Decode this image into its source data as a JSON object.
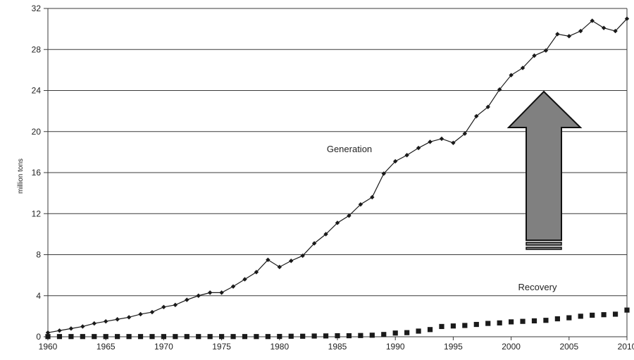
{
  "chart_data": {
    "type": "line",
    "title": "",
    "ylabel": "million tons",
    "xlabel": "",
    "xlim": [
      1960,
      2010
    ],
    "ylim": [
      0,
      32
    ],
    "x_ticks": [
      1960,
      1965,
      1970,
      1975,
      1980,
      1985,
      1990,
      1995,
      2000,
      2005,
      2010
    ],
    "x_tick_labels": [
      "1960",
      "1965",
      "1970",
      "1975",
      "1980",
      "1985",
      "1990",
      "1995",
      "2000",
      "2005",
      "2010"
    ],
    "y_ticks": [
      0,
      4,
      8,
      12,
      16,
      20,
      24,
      28,
      32
    ],
    "y_tick_labels": [
      "0",
      "4",
      "8",
      "12",
      "16",
      "20",
      "24",
      "28",
      "32"
    ],
    "grid": "horizontal",
    "x": [
      1960,
      1961,
      1962,
      1963,
      1964,
      1965,
      1966,
      1967,
      1968,
      1969,
      1970,
      1971,
      1972,
      1973,
      1974,
      1975,
      1976,
      1977,
      1978,
      1979,
      1980,
      1981,
      1982,
      1983,
      1984,
      1985,
      1986,
      1987,
      1988,
      1989,
      1990,
      1991,
      1992,
      1993,
      1994,
      1995,
      1996,
      1997,
      1998,
      1999,
      2000,
      2001,
      2002,
      2003,
      2004,
      2005,
      2006,
      2007,
      2008,
      2009,
      2010
    ],
    "series": [
      {
        "name": "Generation",
        "marker": "diamond",
        "color": "#1a1a1a",
        "label": "Generation",
        "values": [
          0.4,
          0.6,
          0.8,
          1.0,
          1.3,
          1.5,
          1.7,
          1.9,
          2.2,
          2.4,
          2.9,
          3.1,
          3.6,
          4.0,
          4.3,
          4.3,
          4.9,
          5.6,
          6.3,
          7.5,
          6.8,
          7.4,
          7.9,
          9.1,
          10.0,
          11.1,
          11.8,
          12.9,
          13.6,
          15.9,
          17.1,
          17.7,
          18.4,
          19.0,
          19.3,
          18.9,
          19.8,
          21.5,
          22.4,
          24.1,
          25.5,
          26.2,
          27.4,
          27.9,
          29.5,
          29.3,
          29.8,
          30.8,
          30.1,
          29.8,
          31.0
        ]
      },
      {
        "name": "Recovery",
        "marker": "square",
        "color": "#1a1a1a",
        "label": "Recovery",
        "values": [
          0.02,
          0.02,
          0.02,
          0.02,
          0.02,
          0.02,
          0.02,
          0.02,
          0.02,
          0.02,
          0.02,
          0.02,
          0.02,
          0.02,
          0.02,
          0.02,
          0.02,
          0.02,
          0.02,
          0.02,
          0.03,
          0.05,
          0.05,
          0.07,
          0.08,
          0.1,
          0.1,
          0.12,
          0.15,
          0.22,
          0.36,
          0.4,
          0.55,
          0.7,
          1.0,
          1.05,
          1.1,
          1.2,
          1.3,
          1.35,
          1.45,
          1.5,
          1.55,
          1.6,
          1.75,
          1.85,
          2.0,
          2.1,
          2.15,
          2.2,
          2.6
        ]
      }
    ],
    "arrow": {
      "direction": "up",
      "color": "#808080"
    }
  }
}
